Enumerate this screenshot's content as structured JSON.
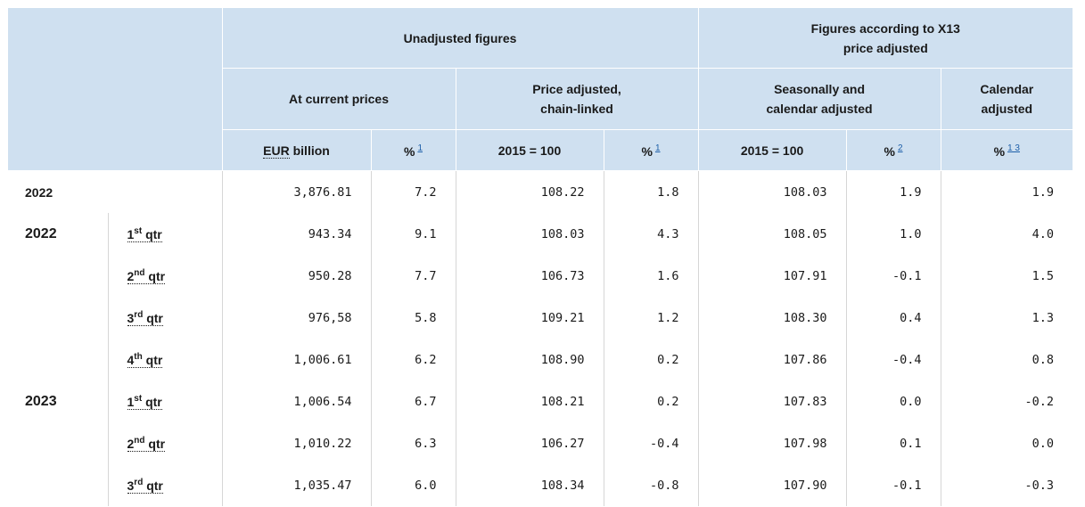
{
  "header": {
    "unadjusted": "Unadjusted figures",
    "x13_line1": "Figures according to X13",
    "x13_line2": "price adjusted",
    "current_prices": "At current prices",
    "price_adj_line1": "Price adjusted,",
    "price_adj_line2": "chain-linked",
    "seasonal_line1": "Seasonally and",
    "seasonal_line2": "calendar adjusted",
    "calendar_line1": "Calendar",
    "calendar_line2": "adjusted",
    "eur_abbr": "EUR",
    "billion": "billion",
    "pct": "%",
    "index_2015": "2015 = 100",
    "fn1": "1",
    "fn2": "2",
    "fn13": "1 3"
  },
  "annual": {
    "year": "2022",
    "values": [
      "3,876.81",
      "7.2",
      "108.22",
      "1.8",
      "108.03",
      "1.9",
      "1.9"
    ]
  },
  "quarter_word": "qtr",
  "rows": [
    {
      "year": "2022",
      "ord": "1",
      "suf": "st",
      "values": [
        "943.34",
        "9.1",
        "108.03",
        "4.3",
        "108.05",
        "1.0",
        "4.0"
      ]
    },
    {
      "year": "",
      "ord": "2",
      "suf": "nd",
      "values": [
        "950.28",
        "7.7",
        "106.73",
        "1.6",
        "107.91",
        "-0.1",
        "1.5"
      ]
    },
    {
      "year": "",
      "ord": "3",
      "suf": "rd",
      "values": [
        "976,58",
        "5.8",
        "109.21",
        "1.2",
        "108.30",
        "0.4",
        "1.3"
      ]
    },
    {
      "year": "",
      "ord": "4",
      "suf": "th",
      "values": [
        "1,006.61",
        "6.2",
        "108.90",
        "0.2",
        "107.86",
        "-0.4",
        "0.8"
      ]
    },
    {
      "year": "2023",
      "ord": "1",
      "suf": "st",
      "values": [
        "1,006.54",
        "6.7",
        "108.21",
        "0.2",
        "107.83",
        "0.0",
        "-0.2"
      ]
    },
    {
      "year": "",
      "ord": "2",
      "suf": "nd",
      "values": [
        "1,010.22",
        "6.3",
        "106.27",
        "-0.4",
        "107.98",
        "0.1",
        "0.0"
      ]
    },
    {
      "year": "",
      "ord": "3",
      "suf": "rd",
      "values": [
        "1,035.47",
        "6.0",
        "108.34",
        "-0.8",
        "107.90",
        "-0.1",
        "-0.3"
      ]
    }
  ]
}
